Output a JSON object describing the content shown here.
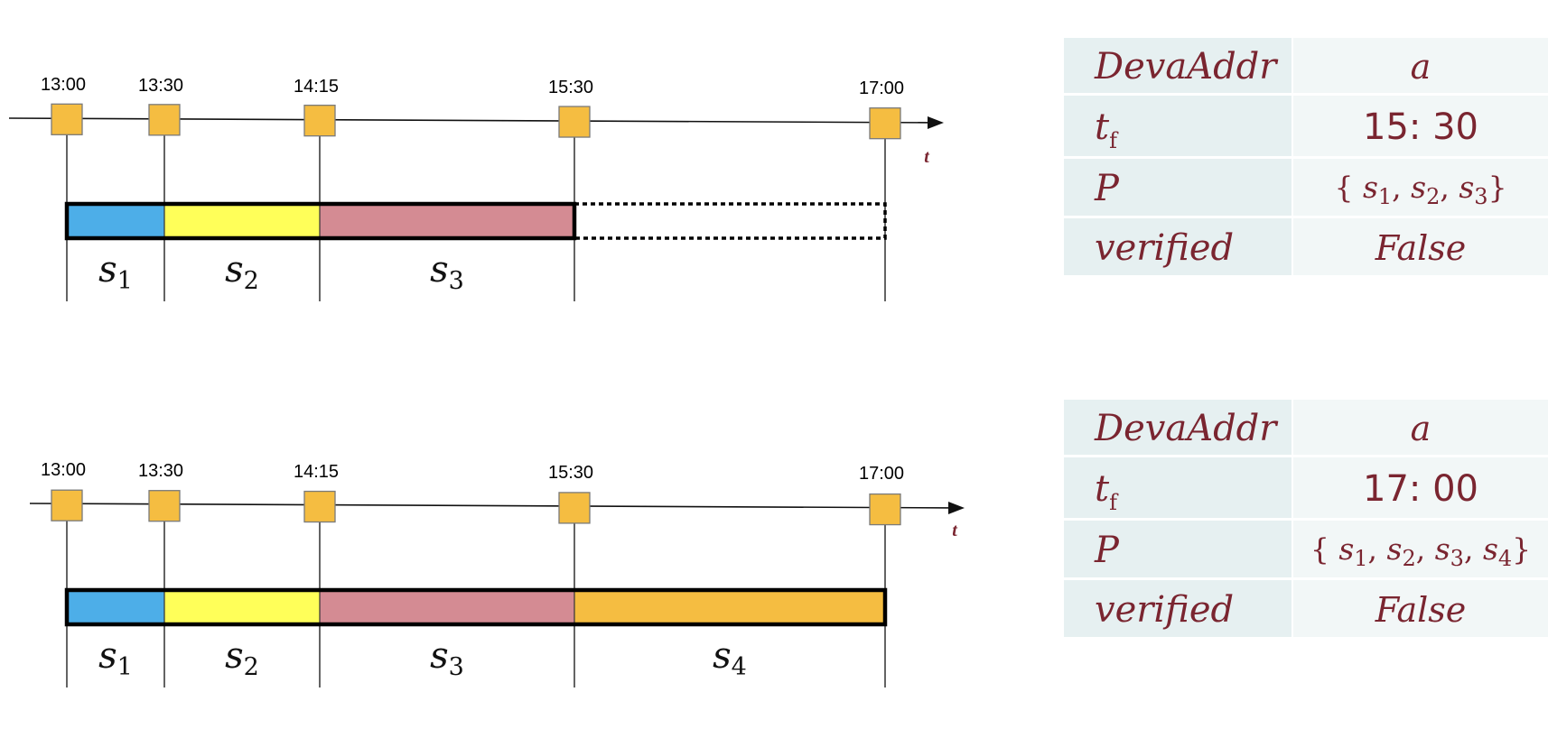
{
  "axis_label": "t",
  "panels": [
    {
      "ticks": [
        "13:00",
        "13:30",
        "14:15",
        "15:30",
        "17:00"
      ],
      "segments": [
        {
          "base": "s",
          "sub": "1",
          "color": "#4daee8"
        },
        {
          "base": "s",
          "sub": "2",
          "color": "#ffff59"
        },
        {
          "base": "s",
          "sub": "3",
          "color": "#d48b93"
        }
      ],
      "pending_segment": "dotted",
      "table": {
        "rows": [
          {
            "key": "DevaAddr",
            "value": "a"
          },
          {
            "key_base": "t",
            "key_sub": "f",
            "value": "15: 30"
          },
          {
            "key": "P",
            "set": [
              {
                "base": "s",
                "sub": "1"
              },
              {
                "base": "s",
                "sub": "2"
              },
              {
                "base": "s",
                "sub": "3"
              }
            ]
          },
          {
            "key": "verified",
            "value": "False"
          }
        ]
      }
    },
    {
      "ticks": [
        "13:00",
        "13:30",
        "14:15",
        "15:30",
        "17:00"
      ],
      "segments": [
        {
          "base": "s",
          "sub": "1",
          "color": "#4daee8"
        },
        {
          "base": "s",
          "sub": "2",
          "color": "#ffff59"
        },
        {
          "base": "s",
          "sub": "3",
          "color": "#d48b93"
        },
        {
          "base": "s",
          "sub": "4",
          "color": "#f5bd41"
        }
      ],
      "pending_segment": "none",
      "table": {
        "rows": [
          {
            "key": "DevaAddr",
            "value": "a"
          },
          {
            "key_base": "t",
            "key_sub": "f",
            "value": "17: 00"
          },
          {
            "key": "P",
            "set": [
              {
                "base": "s",
                "sub": "1"
              },
              {
                "base": "s",
                "sub": "2"
              },
              {
                "base": "s",
                "sub": "3"
              },
              {
                "base": "s",
                "sub": "4"
              }
            ]
          },
          {
            "key": "verified",
            "value": "False"
          }
        ]
      }
    }
  ],
  "colors": {
    "marker": "#f5bd41",
    "table_key_bg": "#e6f0f1",
    "table_val_bg": "#f2f7f7",
    "text_accent": "#7a2530"
  }
}
